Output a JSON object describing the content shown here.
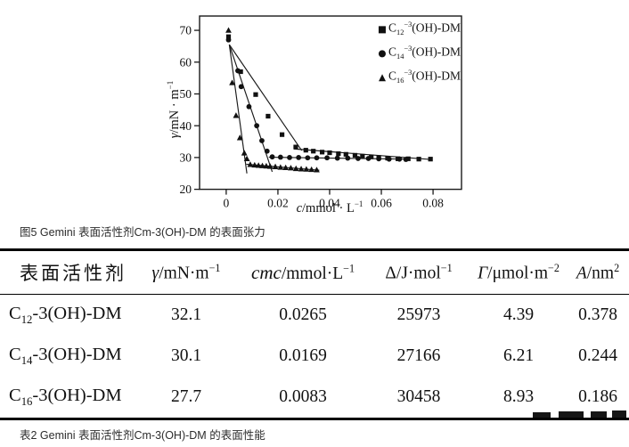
{
  "figure": {
    "caption": "图5 Gemini 表面活性剂Cm-3(OH)-DM 的表面张力",
    "xlabel_html": "<i>c</i>/mmol · L<sup>−1</sup>",
    "ylabel_html": "<i>γ</i>/mN · m<sup>−1</sup>",
    "legend": [
      {
        "marker_glyph": "■",
        "label_html": "C<sub>12</sub><sup>−3</sup>(OH)-DM"
      },
      {
        "marker_glyph": "●",
        "label_html": "C<sub>14</sub><sup>−3</sup>(OH)-DM"
      },
      {
        "marker_glyph": "▲",
        "label_html": "C<sub>16</sub><sup>−3</sup>(OH)-DM"
      }
    ]
  },
  "chart_data": {
    "type": "scatter",
    "title": "",
    "xlabel": "c/mmol·L-1",
    "ylabel": "γ/mN·m-1",
    "xlim": [
      -0.0103,
      0.091
    ],
    "ylim": [
      20,
      74.5
    ],
    "xticks": [
      0,
      0.02,
      0.04,
      0.06,
      0.08
    ],
    "yticks": [
      20,
      30,
      40,
      50,
      60,
      70
    ],
    "grid": false,
    "legend_position": "top-right",
    "series": [
      {
        "name": "C12-3(OH)-DM",
        "marker": "square",
        "points": [
          [
            0.0009,
            68
          ],
          [
            0.0056,
            57
          ],
          [
            0.0114,
            49.8
          ],
          [
            0.0162,
            43
          ],
          [
            0.0216,
            37.2
          ],
          [
            0.0269,
            33.3
          ],
          [
            0.0308,
            32.3
          ],
          [
            0.0337,
            32.0
          ],
          [
            0.0371,
            31.7
          ],
          [
            0.04,
            31.5
          ],
          [
            0.0434,
            31.2
          ],
          [
            0.0463,
            31.0
          ],
          [
            0.0498,
            30.7
          ],
          [
            0.0527,
            30.4
          ],
          [
            0.0561,
            30.2
          ],
          [
            0.059,
            30.0
          ],
          [
            0.0624,
            29.8
          ],
          [
            0.0664,
            29.6
          ],
          [
            0.0704,
            29.6
          ],
          [
            0.0745,
            29.5
          ],
          [
            0.079,
            29.5
          ]
        ],
        "fit_lines": [
          [
            [
              0.0012,
              65.5
            ],
            [
              0.0292,
              32.2
            ]
          ],
          [
            [
              0.0262,
              32.7
            ],
            [
              0.079,
              29.4
            ]
          ]
        ],
        "cmc": 0.0265
      },
      {
        "name": "C14-3(OH)-DM",
        "marker": "circle",
        "points": [
          [
            0.0009,
            67
          ],
          [
            0.0045,
            57.3
          ],
          [
            0.0058,
            52.3
          ],
          [
            0.0088,
            46
          ],
          [
            0.0118,
            40
          ],
          [
            0.0138,
            35.3
          ],
          [
            0.0158,
            32
          ],
          [
            0.0178,
            30.2
          ],
          [
            0.021,
            30.1
          ],
          [
            0.0245,
            30.0
          ],
          [
            0.028,
            30.0
          ],
          [
            0.0315,
            29.9
          ],
          [
            0.035,
            29.9
          ],
          [
            0.039,
            29.9
          ],
          [
            0.043,
            29.8
          ],
          [
            0.047,
            29.8
          ],
          [
            0.051,
            29.7
          ],
          [
            0.055,
            29.7
          ],
          [
            0.059,
            29.6
          ],
          [
            0.063,
            29.5
          ],
          [
            0.067,
            29.5
          ],
          [
            0.0695,
            29.4
          ]
        ],
        "fit_lines": [
          [
            [
              0.0012,
              65.5
            ],
            [
              0.0178,
              25.5
            ]
          ],
          [
            [
              0.0165,
              30.1
            ],
            [
              0.0695,
              29.5
            ]
          ]
        ],
        "cmc": 0.0169
      },
      {
        "name": "C16-3(OH)-DM",
        "marker": "triangle",
        "points": [
          [
            0.0009,
            70
          ],
          [
            0.0023,
            53.5
          ],
          [
            0.0038,
            43.2
          ],
          [
            0.0053,
            36.2
          ],
          [
            0.007,
            31.4
          ],
          [
            0.008,
            29.6
          ],
          [
            0.0093,
            27.8
          ],
          [
            0.011,
            27.6
          ],
          [
            0.0125,
            27.5
          ],
          [
            0.014,
            27.4
          ],
          [
            0.0155,
            27.3
          ],
          [
            0.017,
            27.2
          ],
          [
            0.019,
            27.1
          ],
          [
            0.021,
            26.9
          ],
          [
            0.023,
            26.8
          ],
          [
            0.025,
            26.7
          ],
          [
            0.027,
            26.5
          ],
          [
            0.029,
            26.4
          ],
          [
            0.031,
            26.3
          ],
          [
            0.033,
            26.2
          ],
          [
            0.035,
            26.1
          ]
        ],
        "fit_lines": [
          [
            [
              0.0012,
              65.5
            ],
            [
              0.008,
              25.0
            ]
          ],
          [
            [
              0.0078,
              27.9
            ],
            [
              0.036,
              26.0
            ]
          ]
        ],
        "cmc": 0.0083
      }
    ]
  },
  "table": {
    "caption": "表2 Gemini 表面活性剂Cm-3(OH)-DM 的表面性能",
    "headers_html": [
      "表面活性剂",
      "<i>γ</i>/mN·m<sup>−1</sup>",
      "<span class=\"hdr-cmc\"><i>cmc</i></span>/mmol·L<sup>−1</sup>",
      "Δ/J·mol<sup>−1</sup>",
      "<i>Γ</i>/μmol·m<sup>−2</sup>",
      "<i>A</i>/nm<sup>2</sup>"
    ],
    "rows": [
      {
        "label_html": "C<sub>12</sub>-3(OH)-DM",
        "values": [
          "32.1",
          "0.0265",
          "25973",
          "4.39",
          "0.378"
        ]
      },
      {
        "label_html": "C<sub>14</sub>-3(OH)-DM",
        "values": [
          "30.1",
          "0.0169",
          "27166",
          "6.21",
          "0.244"
        ]
      },
      {
        "label_html": "C<sub>16</sub>-3(OH)-DM",
        "values": [
          "27.7",
          "0.0083",
          "30458",
          "8.93",
          "0.186"
        ]
      }
    ]
  }
}
